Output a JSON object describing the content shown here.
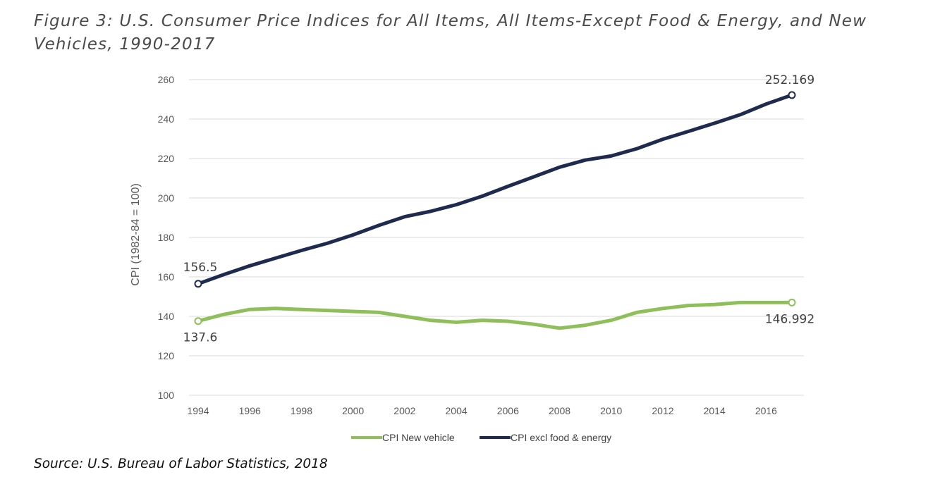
{
  "figure": {
    "title": "Figure 3: U.S. Consumer Price Indices for All Items, All Items-Except Food & Energy, and New Vehicles, 1990-2017",
    "source": "Source: U.S. Bureau of Labor Statistics, 2018"
  },
  "chart_data": {
    "type": "line",
    "title": "",
    "xlabel": "",
    "ylabel": "CPI (1982-84 = 100)",
    "ylim": [
      100,
      260
    ],
    "yticks": [
      100,
      120,
      140,
      160,
      180,
      200,
      220,
      240,
      260
    ],
    "xlim": [
      1994,
      2017
    ],
    "xticks": [
      1994,
      1996,
      1998,
      2000,
      2002,
      2004,
      2006,
      2008,
      2010,
      2012,
      2014,
      2016
    ],
    "grid": "horizontal",
    "legend_position": "bottom",
    "x": [
      1994,
      1995,
      1996,
      1997,
      1998,
      1999,
      2000,
      2001,
      2002,
      2003,
      2004,
      2005,
      2006,
      2007,
      2008,
      2009,
      2010,
      2011,
      2012,
      2013,
      2014,
      2015,
      2016,
      2017
    ],
    "series": [
      {
        "name": "CPI New vehicle",
        "color": "#8fbf5a",
        "values": [
          137.6,
          141.0,
          143.5,
          144.0,
          143.5,
          143.0,
          142.5,
          142.0,
          140.0,
          138.0,
          137.0,
          138.0,
          137.5,
          136.0,
          134.0,
          135.5,
          138.0,
          142.0,
          144.0,
          145.5,
          146.0,
          147.0,
          147.0,
          146.992
        ],
        "first_label": "137.6",
        "last_label": "146.992"
      },
      {
        "name": "CPI excl food & energy",
        "color": "#1f2a4f",
        "values": [
          156.5,
          161.2,
          165.6,
          169.5,
          173.4,
          177.0,
          181.3,
          186.1,
          190.5,
          193.2,
          196.6,
          200.9,
          205.9,
          210.7,
          215.6,
          219.2,
          221.3,
          225.0,
          229.8,
          233.8,
          237.9,
          242.2,
          247.6,
          252.169
        ],
        "first_label": "156.5",
        "last_label": "252.169"
      }
    ]
  }
}
